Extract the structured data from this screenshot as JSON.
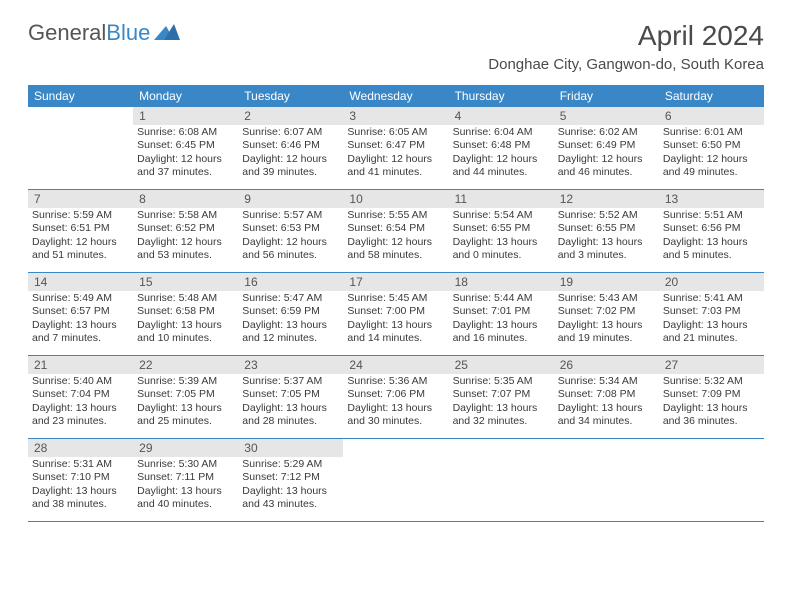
{
  "logo": {
    "text1": "General",
    "text2": "Blue"
  },
  "title": "April 2024",
  "location": "Donghae City, Gangwon-do, South Korea",
  "colors": {
    "header_bg": "#3a87c8",
    "daynum_bg": "#e6e6e6",
    "text": "#3a3a3a",
    "divider": "#3a87c8"
  },
  "daysOfWeek": [
    "Sunday",
    "Monday",
    "Tuesday",
    "Wednesday",
    "Thursday",
    "Friday",
    "Saturday"
  ],
  "labels": {
    "sunrise": "Sunrise:",
    "sunset": "Sunset:",
    "daylight": "Daylight:"
  },
  "weeks": [
    [
      null,
      {
        "n": "1",
        "sr": "6:08 AM",
        "ss": "6:45 PM",
        "dl": "12 hours and 37 minutes."
      },
      {
        "n": "2",
        "sr": "6:07 AM",
        "ss": "6:46 PM",
        "dl": "12 hours and 39 minutes."
      },
      {
        "n": "3",
        "sr": "6:05 AM",
        "ss": "6:47 PM",
        "dl": "12 hours and 41 minutes."
      },
      {
        "n": "4",
        "sr": "6:04 AM",
        "ss": "6:48 PM",
        "dl": "12 hours and 44 minutes."
      },
      {
        "n": "5",
        "sr": "6:02 AM",
        "ss": "6:49 PM",
        "dl": "12 hours and 46 minutes."
      },
      {
        "n": "6",
        "sr": "6:01 AM",
        "ss": "6:50 PM",
        "dl": "12 hours and 49 minutes."
      }
    ],
    [
      {
        "n": "7",
        "sr": "5:59 AM",
        "ss": "6:51 PM",
        "dl": "12 hours and 51 minutes."
      },
      {
        "n": "8",
        "sr": "5:58 AM",
        "ss": "6:52 PM",
        "dl": "12 hours and 53 minutes."
      },
      {
        "n": "9",
        "sr": "5:57 AM",
        "ss": "6:53 PM",
        "dl": "12 hours and 56 minutes."
      },
      {
        "n": "10",
        "sr": "5:55 AM",
        "ss": "6:54 PM",
        "dl": "12 hours and 58 minutes."
      },
      {
        "n": "11",
        "sr": "5:54 AM",
        "ss": "6:55 PM",
        "dl": "13 hours and 0 minutes."
      },
      {
        "n": "12",
        "sr": "5:52 AM",
        "ss": "6:55 PM",
        "dl": "13 hours and 3 minutes."
      },
      {
        "n": "13",
        "sr": "5:51 AM",
        "ss": "6:56 PM",
        "dl": "13 hours and 5 minutes."
      }
    ],
    [
      {
        "n": "14",
        "sr": "5:49 AM",
        "ss": "6:57 PM",
        "dl": "13 hours and 7 minutes."
      },
      {
        "n": "15",
        "sr": "5:48 AM",
        "ss": "6:58 PM",
        "dl": "13 hours and 10 minutes."
      },
      {
        "n": "16",
        "sr": "5:47 AM",
        "ss": "6:59 PM",
        "dl": "13 hours and 12 minutes."
      },
      {
        "n": "17",
        "sr": "5:45 AM",
        "ss": "7:00 PM",
        "dl": "13 hours and 14 minutes."
      },
      {
        "n": "18",
        "sr": "5:44 AM",
        "ss": "7:01 PM",
        "dl": "13 hours and 16 minutes."
      },
      {
        "n": "19",
        "sr": "5:43 AM",
        "ss": "7:02 PM",
        "dl": "13 hours and 19 minutes."
      },
      {
        "n": "20",
        "sr": "5:41 AM",
        "ss": "7:03 PM",
        "dl": "13 hours and 21 minutes."
      }
    ],
    [
      {
        "n": "21",
        "sr": "5:40 AM",
        "ss": "7:04 PM",
        "dl": "13 hours and 23 minutes."
      },
      {
        "n": "22",
        "sr": "5:39 AM",
        "ss": "7:05 PM",
        "dl": "13 hours and 25 minutes."
      },
      {
        "n": "23",
        "sr": "5:37 AM",
        "ss": "7:05 PM",
        "dl": "13 hours and 28 minutes."
      },
      {
        "n": "24",
        "sr": "5:36 AM",
        "ss": "7:06 PM",
        "dl": "13 hours and 30 minutes."
      },
      {
        "n": "25",
        "sr": "5:35 AM",
        "ss": "7:07 PM",
        "dl": "13 hours and 32 minutes."
      },
      {
        "n": "26",
        "sr": "5:34 AM",
        "ss": "7:08 PM",
        "dl": "13 hours and 34 minutes."
      },
      {
        "n": "27",
        "sr": "5:32 AM",
        "ss": "7:09 PM",
        "dl": "13 hours and 36 minutes."
      }
    ],
    [
      {
        "n": "28",
        "sr": "5:31 AM",
        "ss": "7:10 PM",
        "dl": "13 hours and 38 minutes."
      },
      {
        "n": "29",
        "sr": "5:30 AM",
        "ss": "7:11 PM",
        "dl": "13 hours and 40 minutes."
      },
      {
        "n": "30",
        "sr": "5:29 AM",
        "ss": "7:12 PM",
        "dl": "13 hours and 43 minutes."
      },
      null,
      null,
      null,
      null
    ]
  ]
}
